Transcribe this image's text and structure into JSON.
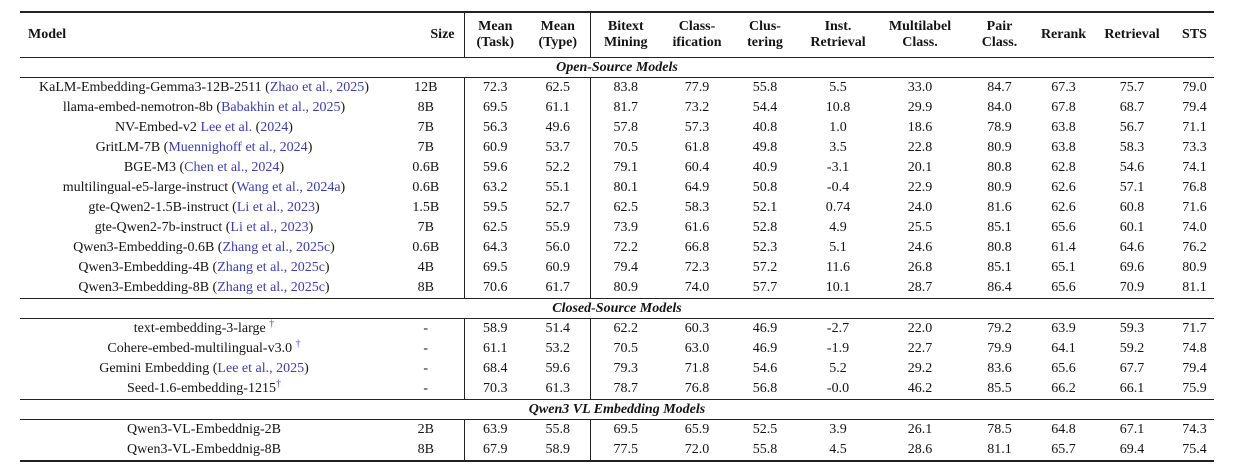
{
  "colors": {
    "citation_link": "#3b3bc4",
    "dagger": "#4a43c8",
    "text": "#141414",
    "rule": "#222222"
  },
  "table": {
    "columns": [
      {
        "key": "model",
        "align": "left",
        "lines": [
          "Model"
        ],
        "sep_after": false
      },
      {
        "key": "size",
        "align": "right",
        "lines": [
          "Size"
        ],
        "sep_after": true
      },
      {
        "key": "mean_task",
        "align": "center",
        "lines": [
          "Mean",
          "(Task)"
        ],
        "sep_after": false
      },
      {
        "key": "mean_type",
        "align": "center",
        "lines": [
          "Mean",
          "(Type)"
        ],
        "sep_after": true
      },
      {
        "key": "bitext",
        "align": "center",
        "lines": [
          "Bitext",
          "Mining"
        ],
        "sep_after": false
      },
      {
        "key": "classification",
        "align": "center",
        "lines": [
          "Class-",
          "ification"
        ],
        "sep_after": false
      },
      {
        "key": "clustering",
        "align": "center",
        "lines": [
          "Clus-",
          "tering"
        ],
        "sep_after": false
      },
      {
        "key": "inst_retrieval",
        "align": "center",
        "lines": [
          "Inst.",
          "Retrieval"
        ],
        "sep_after": false
      },
      {
        "key": "multilabel",
        "align": "center",
        "lines": [
          "Multilabel",
          "Class."
        ],
        "sep_after": false
      },
      {
        "key": "pair_class",
        "align": "center",
        "lines": [
          "Pair",
          "Class."
        ],
        "sep_after": false
      },
      {
        "key": "rerank",
        "align": "center",
        "lines": [
          "Rerank"
        ],
        "sep_after": false
      },
      {
        "key": "retrieval",
        "align": "center",
        "lines": [
          "Retrieval"
        ],
        "sep_after": false
      },
      {
        "key": "sts",
        "align": "center",
        "lines": [
          "STS"
        ],
        "sep_after": false
      }
    ],
    "sections": [
      {
        "title": "Open-Source Models",
        "rows": [
          {
            "model": [
              {
                "t": "KaLM-Embedding-Gemma3-12B-2511 ("
              },
              {
                "t": "Zhao et al., 2025",
                "s": "cite"
              },
              {
                "t": ")"
              }
            ],
            "size": "12B",
            "values": [
              "72.3",
              "62.5",
              "83.8",
              "77.9",
              "55.8",
              "5.5",
              "33.0",
              "84.7",
              "67.3",
              "75.7",
              "79.0"
            ]
          },
          {
            "model": [
              {
                "t": "llama-embed-nemotron-8b ("
              },
              {
                "t": "Babakhin et al., 2025",
                "s": "cite"
              },
              {
                "t": ")"
              }
            ],
            "size": "8B",
            "values": [
              "69.5",
              "61.1",
              "81.7",
              "73.2",
              "54.4",
              "10.8",
              "29.9",
              "84.0",
              "67.8",
              "68.7",
              "79.4"
            ]
          },
          {
            "model": [
              {
                "t": "NV-Embed-v2 "
              },
              {
                "t": "Lee et al.",
                "s": "cite"
              },
              {
                "t": " ("
              },
              {
                "t": "2024",
                "s": "cite"
              },
              {
                "t": ")"
              }
            ],
            "size": "7B",
            "values": [
              "56.3",
              "49.6",
              "57.8",
              "57.3",
              "40.8",
              "1.0",
              "18.6",
              "78.9",
              "63.8",
              "56.7",
              "71.1"
            ]
          },
          {
            "model": [
              {
                "t": "GritLM-7B ("
              },
              {
                "t": "Muennighoff et al., 2024",
                "s": "cite"
              },
              {
                "t": ")"
              }
            ],
            "size": "7B",
            "values": [
              "60.9",
              "53.7",
              "70.5",
              "61.8",
              "49.8",
              "3.5",
              "22.8",
              "80.9",
              "63.8",
              "58.3",
              "73.3"
            ]
          },
          {
            "model": [
              {
                "t": "BGE-M3 ("
              },
              {
                "t": "Chen et al., 2024",
                "s": "cite"
              },
              {
                "t": ")"
              }
            ],
            "size": "0.6B",
            "values": [
              "59.6",
              "52.2",
              "79.1",
              "60.4",
              "40.9",
              "-3.1",
              "20.1",
              "80.8",
              "62.8",
              "54.6",
              "74.1"
            ]
          },
          {
            "model": [
              {
                "t": "multilingual-e5-large-instruct ("
              },
              {
                "t": "Wang et al., 2024a",
                "s": "cite"
              },
              {
                "t": ")"
              }
            ],
            "size": "0.6B",
            "values": [
              "63.2",
              "55.1",
              "80.1",
              "64.9",
              "50.8",
              "-0.4",
              "22.9",
              "80.9",
              "62.6",
              "57.1",
              "76.8"
            ]
          },
          {
            "model": [
              {
                "t": "gte-Qwen2-1.5B-instruct ("
              },
              {
                "t": "Li et al., 2023",
                "s": "cite"
              },
              {
                "t": ")"
              }
            ],
            "size": "1.5B",
            "values": [
              "59.5",
              "52.7",
              "62.5",
              "58.3",
              "52.1",
              "0.74",
              "24.0",
              "81.6",
              "62.6",
              "60.8",
              "71.6"
            ]
          },
          {
            "model": [
              {
                "t": "gte-Qwen2-7b-instruct ("
              },
              {
                "t": "Li et al., 2023",
                "s": "cite"
              },
              {
                "t": ")"
              }
            ],
            "size": "7B",
            "values": [
              "62.5",
              "55.9",
              "73.9",
              "61.6",
              "52.8",
              "4.9",
              "25.5",
              "85.1",
              "65.6",
              "60.1",
              "74.0"
            ]
          },
          {
            "model": [
              {
                "t": "Qwen3-Embedding-0.6B ("
              },
              {
                "t": "Zhang et al., 2025c",
                "s": "cite"
              },
              {
                "t": ")"
              }
            ],
            "size": "0.6B",
            "values": [
              "64.3",
              "56.0",
              "72.2",
              "66.8",
              "52.3",
              "5.1",
              "24.6",
              "80.8",
              "61.4",
              "64.6",
              "76.2"
            ]
          },
          {
            "model": [
              {
                "t": "Qwen3-Embedding-4B ("
              },
              {
                "t": "Zhang et al., 2025c",
                "s": "cite"
              },
              {
                "t": ")"
              }
            ],
            "size": "4B",
            "values": [
              "69.5",
              "60.9",
              "79.4",
              "72.3",
              "57.2",
              "11.6",
              "26.8",
              "85.1",
              "65.1",
              "69.6",
              "80.9"
            ]
          },
          {
            "model": [
              {
                "t": "Qwen3-Embedding-8B ("
              },
              {
                "t": "Zhang et al., 2025c",
                "s": "cite"
              },
              {
                "t": ")"
              }
            ],
            "size": "8B",
            "values": [
              "70.6",
              "61.7",
              "80.9",
              "74.0",
              "57.7",
              "10.1",
              "28.7",
              "86.4",
              "65.6",
              "70.9",
              "81.1"
            ]
          }
        ]
      },
      {
        "title": "Closed-Source Models",
        "rows": [
          {
            "model": [
              {
                "t": "text-embedding-3-large "
              },
              {
                "t": "†",
                "s": "dagger"
              }
            ],
            "size": "-",
            "values": [
              "58.9",
              "51.4",
              "62.2",
              "60.3",
              "46.9",
              "-2.7",
              "22.0",
              "79.2",
              "63.9",
              "59.3",
              "71.7"
            ]
          },
          {
            "model": [
              {
                "t": "Cohere-embed-multilingual-v3.0 "
              },
              {
                "t": "†",
                "s": "dagger"
              }
            ],
            "size": "-",
            "values": [
              "61.1",
              "53.2",
              "70.5",
              "63.0",
              "46.9",
              "-1.9",
              "22.7",
              "79.9",
              "64.1",
              "59.2",
              "74.8"
            ]
          },
          {
            "model": [
              {
                "t": "Gemini Embedding ("
              },
              {
                "t": "Lee et al., 2025",
                "s": "cite"
              },
              {
                "t": ")"
              }
            ],
            "size": "-",
            "values": [
              "68.4",
              "59.6",
              "79.3",
              "71.8",
              "54.6",
              "5.2",
              "29.2",
              "83.6",
              "65.6",
              "67.7",
              "79.4"
            ]
          },
          {
            "model": [
              {
                "t": "Seed-1.6-embedding-1215"
              },
              {
                "t": "†",
                "s": "dagger"
              }
            ],
            "size": "-",
            "values": [
              "70.3",
              "61.3",
              "78.7",
              "76.8",
              "56.8",
              "-0.0",
              "46.2",
              "85.5",
              "66.2",
              "66.1",
              "75.9"
            ]
          }
        ]
      },
      {
        "title": "Qwen3 VL Embedding Models",
        "rows": [
          {
            "model": [
              {
                "t": "Qwen3-VL-Embeddnig-2B"
              }
            ],
            "size": "2B",
            "values": [
              "63.9",
              "55.8",
              "69.5",
              "65.9",
              "52.5",
              "3.9",
              "26.1",
              "78.5",
              "64.8",
              "67.1",
              "74.3"
            ]
          },
          {
            "model": [
              {
                "t": "Qwen3-VL-Embeddnig-8B"
              }
            ],
            "size": "8B",
            "values": [
              "67.9",
              "58.9",
              "77.5",
              "72.0",
              "55.8",
              "4.5",
              "28.6",
              "81.1",
              "65.7",
              "69.4",
              "75.4"
            ]
          }
        ]
      }
    ]
  }
}
